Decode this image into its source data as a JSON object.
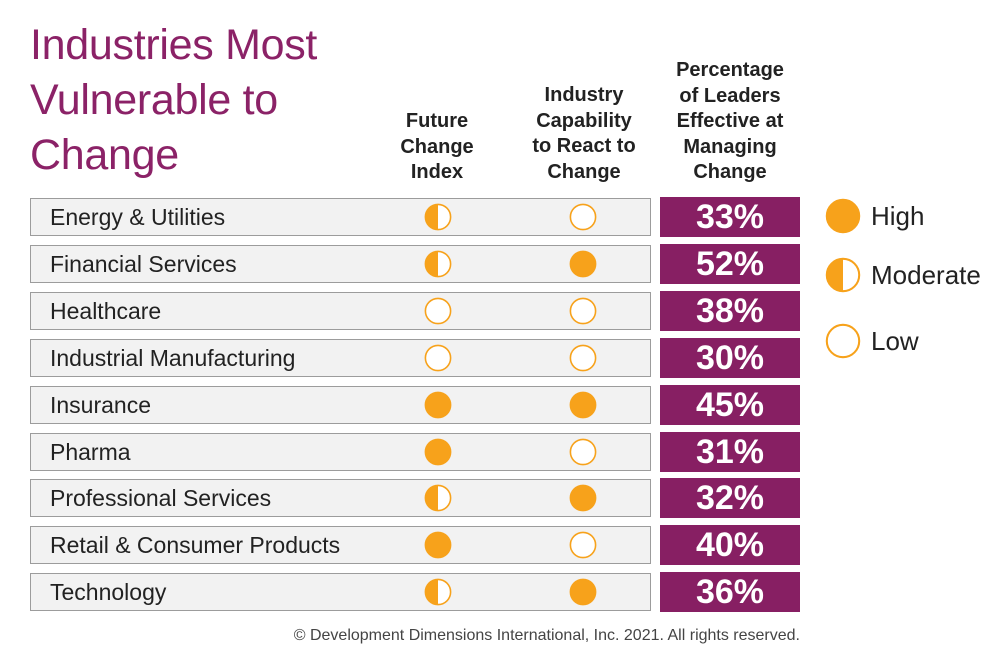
{
  "chart_data": {
    "type": "table",
    "title": [
      "Industries Most",
      "Vulnerable to",
      "Change"
    ],
    "columns": [
      [
        "Future",
        "Change",
        "Index"
      ],
      [
        "Industry",
        "Capability",
        "to React to",
        "Change"
      ],
      [
        "Percentage",
        "of Leaders",
        "Effective at",
        "Managing",
        "Change"
      ]
    ],
    "rows": [
      {
        "industry": "Energy & Utilities",
        "future_change": "Moderate",
        "capability": "Low",
        "percent": "33%"
      },
      {
        "industry": "Financial Services",
        "future_change": "Moderate",
        "capability": "High",
        "percent": "52%"
      },
      {
        "industry": "Healthcare",
        "future_change": "Low",
        "capability": "Low",
        "percent": "38%"
      },
      {
        "industry": "Industrial Manufacturing",
        "future_change": "Low",
        "capability": "Low",
        "percent": "30%"
      },
      {
        "industry": "Insurance",
        "future_change": "High",
        "capability": "High",
        "percent": "45%"
      },
      {
        "industry": "Pharma",
        "future_change": "High",
        "capability": "Low",
        "percent": "31%"
      },
      {
        "industry": "Professional Services",
        "future_change": "Moderate",
        "capability": "High",
        "percent": "32%"
      },
      {
        "industry": "Retail & Consumer Products",
        "future_change": "High",
        "capability": "Low",
        "percent": "40%"
      },
      {
        "industry": "Technology",
        "future_change": "Moderate",
        "capability": "High",
        "percent": "36%"
      }
    ],
    "legend": [
      {
        "level": "High",
        "label": "High"
      },
      {
        "level": "Moderate",
        "label": "Moderate"
      },
      {
        "level": "Low",
        "label": "Low"
      }
    ],
    "legend_position": "right"
  },
  "colors": {
    "title": "#8b2267",
    "percent_bg": "#871f63",
    "indicator": "#f7a21b",
    "row_bg": "#f2f2f2"
  },
  "footer": "© Development Dimensions International, Inc. 2021. All rights reserved."
}
